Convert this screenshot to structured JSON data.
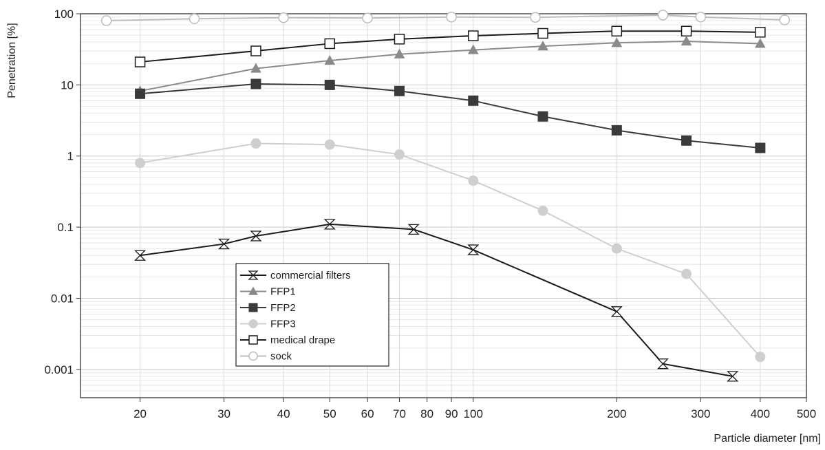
{
  "chart_data": {
    "type": "line",
    "title": "",
    "xlabel": "Particle diameter [nm]",
    "ylabel": "Penetration [%]",
    "x_scale": "log",
    "y_scale": "log",
    "xlim": [
      15,
      500
    ],
    "ylim": [
      0.0004,
      100
    ],
    "grid": true,
    "legend_position": "lower-left",
    "x_ticks": [
      {
        "value": 20,
        "label": "20"
      },
      {
        "value": 30,
        "label": "30"
      },
      {
        "value": 40,
        "label": "40"
      },
      {
        "value": 50,
        "label": "50"
      },
      {
        "value": 60,
        "label": "60"
      },
      {
        "value": 70,
        "label": "70"
      },
      {
        "value": 80,
        "label": "80"
      },
      {
        "value": 90,
        "label": "90"
      },
      {
        "value": 100,
        "label": "100"
      },
      {
        "value": 200,
        "label": "200"
      },
      {
        "value": 300,
        "label": "300"
      },
      {
        "value": 400,
        "label": "400"
      },
      {
        "value": 500,
        "label": "500"
      }
    ],
    "y_ticks": [
      {
        "value": 100,
        "label": "100"
      },
      {
        "value": 10,
        "label": "10"
      },
      {
        "value": 1,
        "label": "1"
      },
      {
        "value": 0.1,
        "label": "0.1"
      },
      {
        "value": 0.01,
        "label": "0.01"
      },
      {
        "value": 0.001,
        "label": "0.001"
      }
    ],
    "series": [
      {
        "name": "commercial filters",
        "color": "#1a1a1a",
        "marker": "hourglass-open",
        "points": [
          [
            20,
            0.04
          ],
          [
            30,
            0.058
          ],
          [
            35,
            0.075
          ],
          [
            50,
            0.11
          ],
          [
            75,
            0.093
          ],
          [
            100,
            0.048
          ],
          [
            200,
            0.0065
          ],
          [
            250,
            0.0012
          ],
          [
            350,
            0.0008
          ]
        ]
      },
      {
        "name": "FFP1",
        "color": "#8a8a8a",
        "marker": "triangle-filled",
        "points": [
          [
            20,
            8.2
          ],
          [
            35,
            17
          ],
          [
            50,
            22
          ],
          [
            70,
            27
          ],
          [
            100,
            31
          ],
          [
            140,
            35
          ],
          [
            200,
            39
          ],
          [
            280,
            41
          ],
          [
            400,
            38
          ]
        ]
      },
      {
        "name": "FFP2",
        "color": "#3a3a3a",
        "marker": "square-filled",
        "points": [
          [
            20,
            7.5
          ],
          [
            35,
            10.3
          ],
          [
            50,
            10
          ],
          [
            70,
            8.2
          ],
          [
            100,
            6
          ],
          [
            140,
            3.6
          ],
          [
            200,
            2.3
          ],
          [
            280,
            1.65
          ],
          [
            400,
            1.3
          ]
        ]
      },
      {
        "name": "FFP3",
        "color": "#cfcfcf",
        "marker": "circle-filled",
        "points": [
          [
            20,
            0.8
          ],
          [
            35,
            1.5
          ],
          [
            50,
            1.45
          ],
          [
            70,
            1.05
          ],
          [
            100,
            0.45
          ],
          [
            140,
            0.17
          ],
          [
            200,
            0.05
          ],
          [
            280,
            0.022
          ],
          [
            400,
            0.0015
          ]
        ]
      },
      {
        "name": "medical drape",
        "color": "#1a1a1a",
        "marker": "square-open",
        "points": [
          [
            20,
            21
          ],
          [
            35,
            30
          ],
          [
            50,
            38
          ],
          [
            70,
            44
          ],
          [
            100,
            49
          ],
          [
            140,
            53
          ],
          [
            200,
            57
          ],
          [
            280,
            57
          ],
          [
            400,
            55
          ]
        ]
      },
      {
        "name": "sock",
        "color": "#bdbdbd",
        "marker": "circle-open",
        "points": [
          [
            17,
            80
          ],
          [
            26,
            85
          ],
          [
            40,
            88
          ],
          [
            60,
            87
          ],
          [
            90,
            90
          ],
          [
            135,
            89
          ],
          [
            250,
            96
          ],
          [
            300,
            90
          ],
          [
            450,
            82
          ]
        ]
      }
    ]
  }
}
